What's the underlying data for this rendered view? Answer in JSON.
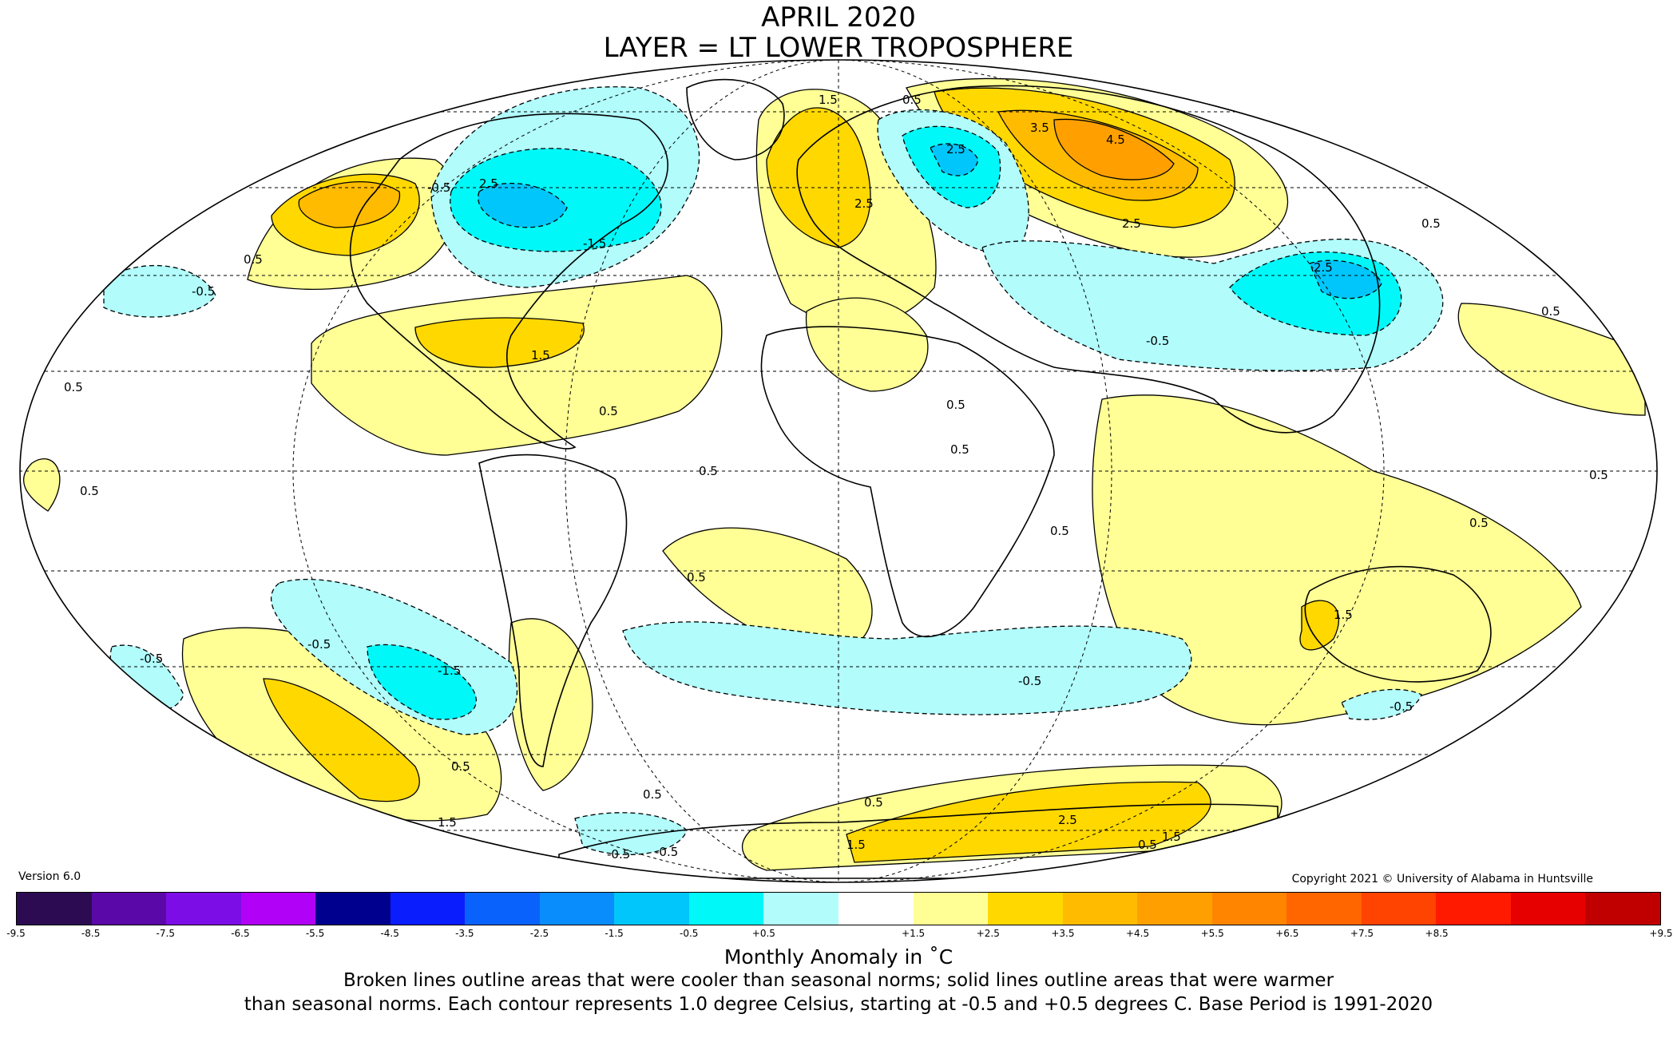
{
  "title_line1": "APRIL 2020",
  "title_line2": "LAYER = LT LOWER TROPOSPHERE",
  "version": "Version 6.0",
  "copyright": "Copyright 2021 © University of Alabama in Huntsville",
  "units_label": "Monthly Anomaly in ˚C",
  "note_line1": "Broken lines outline areas that were cooler than seasonal norms; solid lines outline areas that were warmer",
  "note_line2": "than seasonal norms. Each contour represents 1.0 degree Celsius, starting at -0.5 and +0.5 degrees C. Base Period is 1991-2020",
  "colorbar": {
    "ticks": [
      "-9.5",
      "-8.5",
      "-7.5",
      "-6.5",
      "-5.5",
      "-4.5",
      "-3.5",
      "-2.5",
      "-1.5",
      "-0.5",
      "+0.5",
      "+1.5",
      "+2.5",
      "+3.5",
      "+4.5",
      "+5.5",
      "+6.5",
      "+7.5",
      "+8.5",
      "+9.5"
    ],
    "colors": [
      "#2d0b52",
      "#5b08a8",
      "#7d0de6",
      "#b102f7",
      "#00008f",
      "#0a1dfc",
      "#0a62fc",
      "#0a8dfc",
      "#00c6fc",
      "#00f8f8",
      "#b2fcfc",
      "#ffffff",
      "#ffff96",
      "#ffd800",
      "#ffbb00",
      "#ffa000",
      "#ff8500",
      "#ff6600",
      "#ff4300",
      "#ff1a00",
      "#e60000",
      "#c00000"
    ]
  },
  "contour_labels": [
    "0.5",
    "1.5",
    "2.5",
    "3.5",
    "4.5",
    "-0.5",
    "-1.5",
    "-2.5"
  ],
  "colors": {
    "warm_1": "#ffff96",
    "warm_2": "#ffd800",
    "warm_3": "#ffbb00",
    "warm_4": "#ffa000",
    "cool_1": "#b2fcfc",
    "cool_2": "#00f8f8",
    "cool_3": "#00c6fc"
  }
}
